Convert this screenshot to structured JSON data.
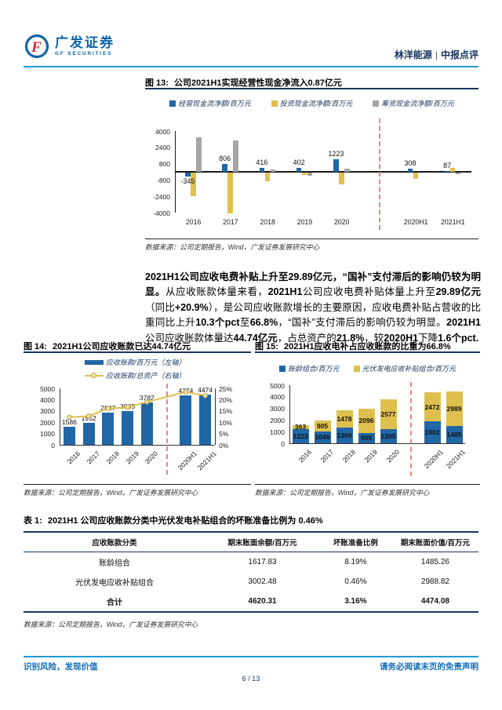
{
  "header": {
    "logo_cn": "广发证券",
    "logo_en": "GF SECURITIES",
    "stock": "林洋能源",
    "sep": "|",
    "report_type": "中报点评"
  },
  "fig13": {
    "label": "图 13:",
    "title": "公司2021H1实现经营性现金净流入0.87亿元",
    "source": "数据来源：公司定期报告，Wind，广发证券发展研究中心"
  },
  "fig14": {
    "label": "图 14:",
    "title": "2021H1公司应收账款已达44.74亿元",
    "source": "数据来源：公司定期报告，Wind，广发证券发展研究中心"
  },
  "fig15": {
    "label": "图 15:",
    "title": "2021H1应收电补占应收账款的比重为66.8%",
    "source": "数据来源：公司定期报告，Wind，广发证券发展研究中心"
  },
  "paragraph": {
    "segments": [
      {
        "b": 1,
        "t": "2021H1公司应收电费补贴上升至29.89亿元，“国补”支付滞后的影响仍较为明显。"
      },
      {
        "b": 0,
        "t": "从应收账款体量来看，"
      },
      {
        "b": 1,
        "t": "2021H1"
      },
      {
        "b": 0,
        "t": "公司应收电费补贴体量上升至"
      },
      {
        "b": 1,
        "t": "29.89亿元"
      },
      {
        "b": 0,
        "t": "（同比"
      },
      {
        "b": 1,
        "t": "+20.9%"
      },
      {
        "b": 0,
        "t": "），是公司应收账款增长的主要原因，应收电费补贴占营收的比重同比上升"
      },
      {
        "b": 1,
        "t": "10.3个pct"
      },
      {
        "b": 0,
        "t": "至"
      },
      {
        "b": 1,
        "t": "66.8%"
      },
      {
        "b": 0,
        "t": "，“国补”支付滞后的影响仍较为明显。"
      },
      {
        "b": 1,
        "t": "2021H1"
      },
      {
        "b": 0,
        "t": "公司应收账款体量达"
      },
      {
        "b": 1,
        "t": "44.74亿元"
      },
      {
        "b": 0,
        "t": "，占总资产的"
      },
      {
        "b": 1,
        "t": "21.8%"
      },
      {
        "b": 0,
        "t": "，较"
      },
      {
        "b": 1,
        "t": "2020H1"
      },
      {
        "b": 0,
        "t": "下降"
      },
      {
        "b": 1,
        "t": "1.6个pct."
      }
    ]
  },
  "table1": {
    "label": "表 1:",
    "title": "2021H1 公司应收账款分类中光伏发电补贴组合的坏账准备比例为 0.46%",
    "headers": [
      "应收账款分类",
      "期末账面余额/百万元",
      "坏账准备比例",
      "期末账面价值/百万元"
    ],
    "rows": [
      [
        "账龄组合",
        "1617.83",
        "8.19%",
        "1485.26"
      ],
      [
        "光伏发电应收补贴组合",
        "3002.48",
        "0.46%",
        "2988.82"
      ],
      [
        "合计",
        "4620.31",
        "3.16%",
        "4474.08"
      ]
    ],
    "source": "数据来源：公司定期报告，Wind，广发证券发展研究中心"
  },
  "footer": {
    "left": "识别风险，发现价值",
    "right": "请务必阅读末页的免责声明",
    "page": "6 / 13"
  },
  "colors": {
    "blue": "#2166A5",
    "yellow": "#DFC04E",
    "gray": "#A6A6A6",
    "separator_red": "#ED837F",
    "header_rule": "#1E9BD7",
    "footer_blue": "#0E6EB8",
    "rule_navy": "#17375E"
  },
  "chart_data": [
    {
      "id": "fig13",
      "type": "bar",
      "title": "公司2021H1实现经营性现金净流入0.87亿元",
      "categories": [
        "2016",
        "2017",
        "2018",
        "2019",
        "2020",
        "2020H1",
        "2021H1"
      ],
      "series": [
        {
          "name": "经营现金流净额/百万元",
          "color": "#2166A5",
          "values": [
            -345,
            806,
            416,
            402,
            1223,
            308,
            87
          ],
          "data_labels": true
        },
        {
          "name": "投资现金流净额/百万元",
          "color": "#DFC04E",
          "values": [
            -2300,
            -3950,
            -800,
            -200,
            -1100,
            -550,
            350
          ]
        },
        {
          "name": "筹资现金流净额/百万元",
          "color": "#A6A6A6",
          "values": [
            3400,
            3100,
            250,
            -300,
            300,
            0,
            -150
          ]
        }
      ],
      "ylim": [
        -4000,
        4000
      ],
      "yticks": [
        4000,
        2400,
        800,
        -800,
        -2400,
        -4000
      ],
      "separator_after_index": 4,
      "legend_position": "top",
      "grid": false
    },
    {
      "id": "fig14",
      "type": "bar+line",
      "title": "2021H1公司应收账款已达44.74亿元",
      "categories": [
        "2016",
        "2017",
        "2018",
        "2019",
        "2020",
        "2020H1",
        "2021H1"
      ],
      "bar": {
        "name": "应收账款/百万元（左轴）",
        "color": "#2166A5",
        "values": [
          1586,
          1952,
          2847,
          3005,
          3782,
          4374,
          4474
        ]
      },
      "line": {
        "name": "应收账款/总资产（右轴）",
        "color": "#DFC04E",
        "values_pct": [
          12.2,
          12.7,
          16.1,
          16.6,
          19.0,
          23.4,
          21.8
        ]
      },
      "ylim_left": [
        0,
        5000
      ],
      "yticks_left": [
        0,
        1000,
        2000,
        3000,
        4000,
        5000
      ],
      "ylim_right_pct": [
        0,
        25
      ],
      "yticks_right": [
        "0%",
        "5%",
        "10%",
        "15%",
        "20%",
        "25%"
      ],
      "separator_after_index": 4,
      "legend_position": "top",
      "grid": false
    },
    {
      "id": "fig15",
      "type": "stacked-bar",
      "title": "2021H1应收电补占应收账款的比重为66.8%",
      "categories": [
        "2016",
        "2017",
        "2018",
        "2019",
        "2020",
        "2020H1",
        "2021H1"
      ],
      "series": [
        {
          "name": "账龄组合/百万元",
          "color": "#2166A5",
          "values": [
            1223,
            1046,
            1369,
            909,
            1205,
            1902,
            1485
          ]
        },
        {
          "name": "光伏发电应收补贴组合/百万元",
          "color": "#DFC04E",
          "values": [
            363,
            905,
            1478,
            2096,
            2577,
            2472,
            2989
          ]
        }
      ],
      "ylim": [
        0,
        5000
      ],
      "yticks": [
        0,
        1000,
        2000,
        3000,
        4000,
        5000
      ],
      "separator_after_index": 4,
      "legend_position": "top",
      "grid": false
    }
  ]
}
